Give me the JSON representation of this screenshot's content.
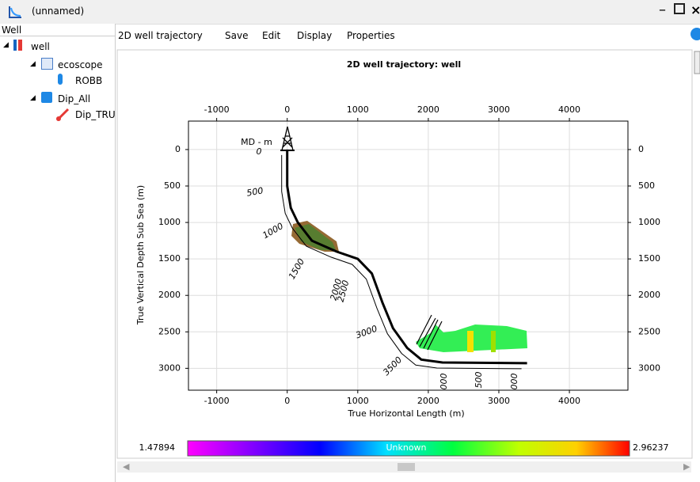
{
  "window": {
    "title": "(unnamed)"
  },
  "tree": {
    "header": "Well",
    "items": [
      "well",
      "ecoscope",
      "ROBB",
      "Dip_All",
      "Dip_TRU"
    ]
  },
  "menu": [
    "2D well trajectory",
    "Save",
    "Edit",
    "Display",
    "Properties"
  ],
  "chart": {
    "title": "2D well trajectory: well",
    "x_label": "True Horizontal Length (m)",
    "y_label": "True Vertical Depth Sub Sea (m)",
    "xlim": [
      -1400,
      4830
    ],
    "ylim": [
      -390,
      3300
    ],
    "xticks": [
      -1000,
      0,
      1000,
      2000,
      3000,
      4000
    ],
    "yticks": [
      0,
      500,
      1000,
      1500,
      2000,
      2500,
      3000
    ],
    "grid": true,
    "trajectory": {
      "x": [
        0,
        0,
        50,
        150,
        350,
        700,
        1000,
        1200,
        1350,
        1500,
        1700,
        1900,
        2200,
        3400
      ],
      "y": [
        0,
        500,
        800,
        1000,
        1250,
        1400,
        1500,
        1700,
        2100,
        2450,
        2720,
        2880,
        2920,
        2930
      ]
    },
    "md_title": "MD - m",
    "md_labels": [
      "0",
      "500",
      "1000",
      "1500",
      "2000",
      "2500",
      "3000",
      "3500",
      "000",
      "500",
      "000"
    ]
  },
  "colorbar": {
    "min_label": "1.47894",
    "center_label": "Unknown",
    "max_label": "2.96237"
  }
}
